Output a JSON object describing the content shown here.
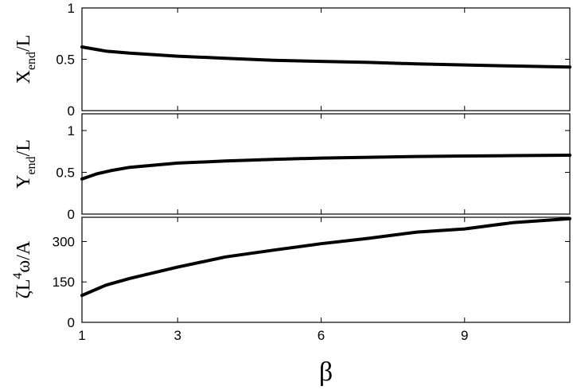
{
  "chart_data": [
    {
      "type": "line",
      "ylabel": {
        "main": "X",
        "sub": "end",
        "tail": "/L"
      },
      "xlim": [
        1,
        11.2
      ],
      "ylim": [
        0,
        1
      ],
      "yticks": [
        "0",
        "0.5",
        "1"
      ],
      "yticks_values": [
        0,
        0.5,
        1
      ],
      "series": [
        {
          "x": [
            1,
            1.5,
            2,
            3,
            4,
            5,
            6,
            7,
            8,
            9,
            10,
            11.2
          ],
          "y": [
            0.62,
            0.58,
            0.56,
            0.53,
            0.51,
            0.49,
            0.48,
            0.47,
            0.455,
            0.445,
            0.435,
            0.425
          ]
        }
      ]
    },
    {
      "type": "line",
      "ylabel": {
        "main": "Y",
        "sub": "end",
        "tail": "/L"
      },
      "xlim": [
        1,
        11.2
      ],
      "ylim": [
        0,
        1.2
      ],
      "yticks": [
        "0",
        "0.5",
        "1"
      ],
      "yticks_values": [
        0,
        0.5,
        1
      ],
      "series": [
        {
          "x": [
            1,
            1.3,
            1.6,
            2,
            3,
            4,
            5,
            6,
            7,
            8,
            9,
            10,
            11.2
          ],
          "y": [
            0.42,
            0.48,
            0.52,
            0.56,
            0.61,
            0.635,
            0.655,
            0.67,
            0.68,
            0.69,
            0.695,
            0.7,
            0.705
          ]
        }
      ]
    },
    {
      "type": "line",
      "ylabel": {
        "main": "ζL",
        "sup": "4",
        "tail": "ω/A"
      },
      "xlabel": "β",
      "xlim": [
        1,
        11.2
      ],
      "ylim": [
        0,
        390
      ],
      "yticks": [
        "0",
        "150",
        "300"
      ],
      "yticks_values": [
        0,
        150,
        300
      ],
      "xticks": [
        "1",
        "3",
        "6",
        "9"
      ],
      "xticks_values": [
        1,
        3,
        6,
        9
      ],
      "series": [
        {
          "x": [
            1,
            1.5,
            2,
            3,
            4,
            5,
            6,
            7,
            8,
            9,
            10,
            11.2
          ],
          "y": [
            100,
            138,
            163,
            205,
            243,
            268,
            292,
            312,
            335,
            347,
            370,
            385
          ]
        }
      ]
    }
  ]
}
